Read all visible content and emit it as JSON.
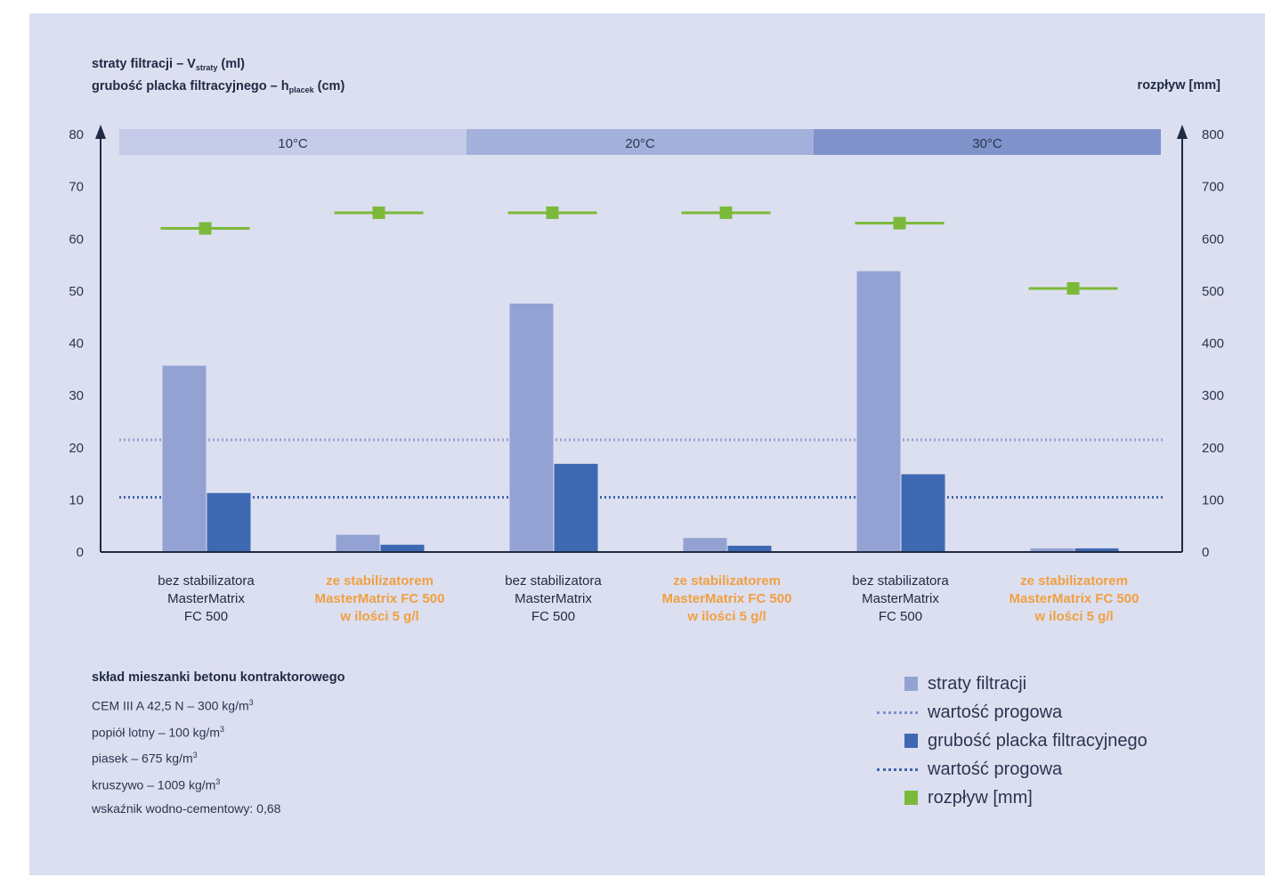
{
  "left_axis_title": {
    "line1_prefix": "straty filtracji – V",
    "line1_sub": "straty",
    "line1_suffix": " (ml)",
    "line2_prefix": "grubość placka filtracyjnego – h",
    "line2_sub": "placek",
    "line2_suffix": " (cm)"
  },
  "right_axis_title": "rozpływ [mm]",
  "colors": {
    "panel_bg": "#dcdff0",
    "straty": "#93a2d3",
    "placek": "#3e69b2",
    "rozplyw": "#7cb93a",
    "highlight_text": "#f0a040",
    "temp_bands": [
      "#c5cbe8",
      "#a3b0dc",
      "#7f93ca"
    ]
  },
  "chart_data": {
    "type": "bar",
    "categories": [
      [
        "bez stabilizatora",
        "MasterMatrix",
        "FC 500"
      ],
      [
        "ze stabilizatorem",
        "MasterMatrix FC 500",
        "w ilości 5 g/l"
      ],
      [
        "bez stabilizatora",
        "MasterMatrix",
        "FC 500"
      ],
      [
        "ze stabilizatorem",
        "MasterMatrix FC 500",
        "w ilości 5 g/l"
      ],
      [
        "bez stabilizatora",
        "MasterMatrix",
        "FC 500"
      ],
      [
        "ze stabilizatorem",
        "MasterMatrix FC 500",
        "w ilości 5 g/l"
      ]
    ],
    "highlighted_categories": [
      false,
      true,
      false,
      true,
      false,
      true
    ],
    "temperature_groups": [
      "10°C",
      "20°C",
      "30°C"
    ],
    "series": [
      {
        "name": "straty filtracji",
        "axis": "left",
        "kind": "bar",
        "values": [
          35.7,
          3.3,
          47.6,
          2.7,
          53.8,
          0.7
        ]
      },
      {
        "name": "grubość placka filtracyjnego",
        "axis": "left",
        "kind": "bar",
        "values": [
          11.3,
          1.4,
          16.9,
          1.2,
          14.9,
          0.7
        ]
      },
      {
        "name": "rozpływ [mm]",
        "axis": "right",
        "kind": "marker",
        "values": [
          620,
          650,
          650,
          650,
          630,
          505
        ]
      }
    ],
    "thresholds": [
      {
        "name": "wartość progowa",
        "value": 21.5,
        "series": "straty filtracji"
      },
      {
        "name": "wartość progowa",
        "value": 10.5,
        "series": "grubość placka filtracyjnego"
      }
    ],
    "y_left": {
      "ylim": [
        0,
        80
      ],
      "ticks": [
        "0",
        "10",
        "20",
        "30",
        "40",
        "50",
        "60",
        "70",
        "80"
      ]
    },
    "y_right": {
      "ylim": [
        0,
        800
      ],
      "ticks": [
        "0",
        "100",
        "200",
        "300",
        "400",
        "500",
        "600",
        "700",
        "800"
      ]
    },
    "grid": false,
    "legend_position": "bottom-right"
  },
  "composition": {
    "title": "skład mieszanki betonu kontraktorowego",
    "lines": [
      {
        "text": "CEM III A 42,5 N – 300 kg/m",
        "sup": "3"
      },
      {
        "text": "popiół lotny – 100 kg/m",
        "sup": "3"
      },
      {
        "text": "piasek – 675 kg/m",
        "sup": "3"
      },
      {
        "text": "kruszywo – 1009 kg/m",
        "sup": "3"
      },
      {
        "text": "wskaźnik wodno-cementowy: 0,68",
        "sup": ""
      }
    ]
  },
  "legend": [
    {
      "label": "straty filtracji",
      "swatch": "square",
      "color": "#93a2d3"
    },
    {
      "label": "wartość progowa",
      "swatch": "dotted",
      "color": "#7f93ca"
    },
    {
      "label": "grubość placka filtracyjnego",
      "swatch": "square",
      "color": "#3e69b2"
    },
    {
      "label": "wartość progowa",
      "swatch": "dotted",
      "color": "#3d66b0"
    },
    {
      "label": "rozpływ [mm]",
      "swatch": "square",
      "color": "#7cb93a"
    }
  ]
}
